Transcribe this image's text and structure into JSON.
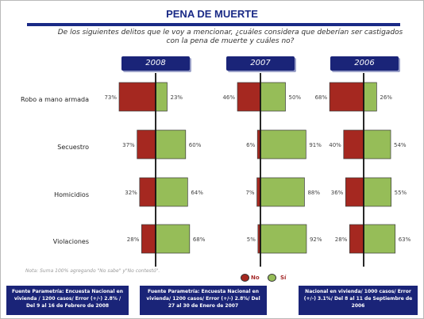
{
  "header": {
    "title": "PENA DE MUERTE",
    "question": "De los siguientes delitos que le voy a mencionar, ¿cuáles considera que deberían ser castigados con la pena de muerte y cuáles no?"
  },
  "note": "Nota: Suma 100% agregando \"No sabe\" y\"No contestó\".",
  "legend": {
    "no": "No",
    "si": "Sí"
  },
  "colors": {
    "no": "#a52820",
    "si": "#96bd58",
    "accent": "#1a2478"
  },
  "footers": [
    "Fuente Parametría: Encuesta Nacional en vivienda / 1200 casos/ Error (+/-) 2.8% / Del 9 al 16 de Febrero de 2008",
    "Fuente Parametría: Encuesta Nacional en vivienda/ 1200 casos/ Error (+/-) 2.8%/ Del 27 al 30 de Enero de 2007",
    "Nacional en vivienda/ 1000 casos/ Error (+/-) 3.1%/ Del 8 al 11 de Septiembre de 2006"
  ],
  "chart_data": {
    "type": "bar",
    "categories": [
      "Robo a mano armada",
      "Secuestro",
      "Homicidios",
      "Violaciones"
    ],
    "panels": [
      {
        "year": "2008",
        "no": [
          73,
          37,
          32,
          28
        ],
        "si": [
          23,
          60,
          64,
          68
        ],
        "no_labels": [
          "73%",
          "37%",
          "32%",
          "28%"
        ],
        "si_labels": [
          "23%",
          "60%",
          "64%",
          "68%"
        ]
      },
      {
        "year": "2007",
        "no": [
          46,
          6,
          7,
          5
        ],
        "si": [
          50,
          91,
          88,
          92
        ],
        "no_labels": [
          "46%",
          "6%",
          "7%",
          "5%"
        ],
        "si_labels": [
          "50%",
          "91%",
          "88%",
          "92%"
        ]
      },
      {
        "year": "2006",
        "no": [
          68,
          40,
          36,
          28
        ],
        "si": [
          26,
          54,
          55,
          63
        ],
        "no_labels": [
          "68%",
          "40%",
          "36%",
          "28%"
        ],
        "si_labels": [
          "26%",
          "54%",
          "55%",
          "63%"
        ]
      }
    ],
    "series": [
      {
        "name": "No"
      },
      {
        "name": "Sí"
      }
    ]
  }
}
